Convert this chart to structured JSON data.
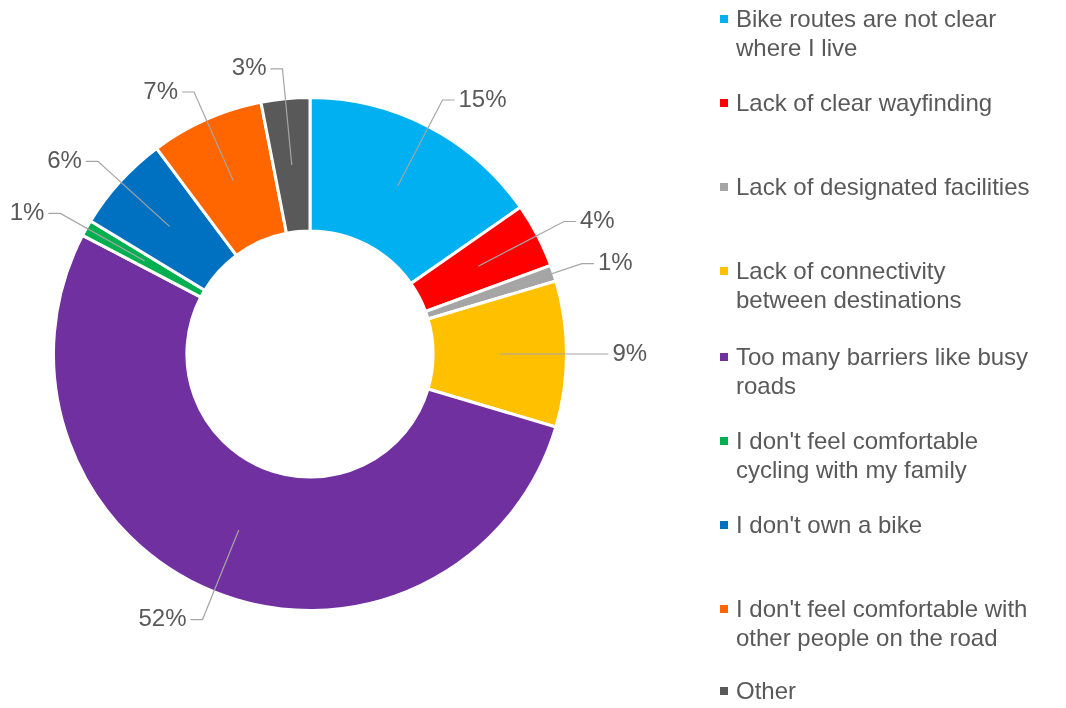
{
  "chart_data": {
    "type": "donut",
    "categories": [
      "Bike routes are not clear where I live",
      "Lack of clear wayfinding",
      "Lack of designated facilities",
      "Lack of connectivity between destinations",
      "Too many barriers like busy roads",
      "I don't feel comfortable cycling with my family",
      "I don't own a bike",
      "I don't feel comfortable with other people on the road",
      "Other"
    ],
    "values": [
      15,
      4,
      1,
      9,
      52,
      1,
      6,
      7,
      3
    ],
    "colors": [
      "#00b0f0",
      "#ff0000",
      "#a5a5a5",
      "#ffc000",
      "#7030a0",
      "#00b050",
      "#0070c0",
      "#ff6600",
      "#595959"
    ],
    "value_labels": [
      "15%",
      "4%",
      "1%",
      "9%",
      "52%",
      "1%",
      "6%",
      "7%",
      "3%"
    ],
    "legend": "right"
  }
}
